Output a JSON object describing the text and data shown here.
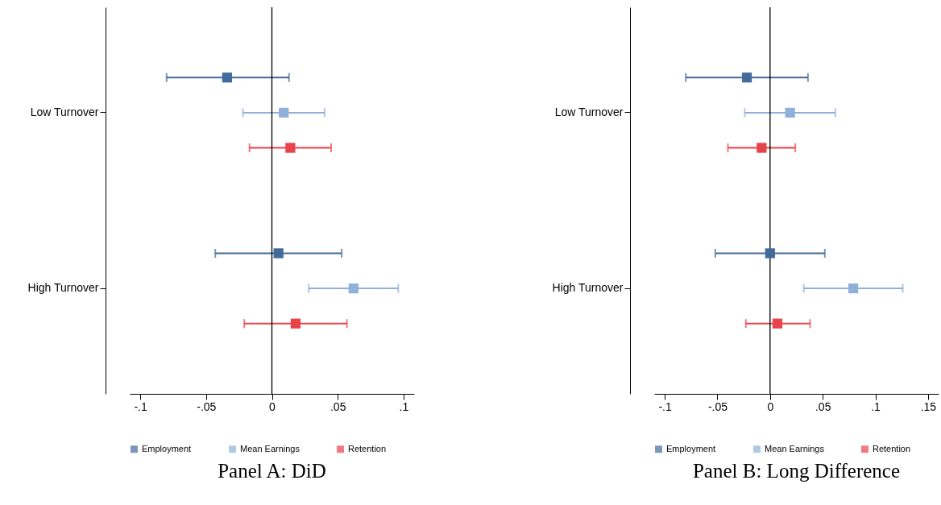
{
  "chart_data": [
    {
      "type": "scatter",
      "title": "Panel A: DiD",
      "orientation": "horizontal",
      "categories": [
        "Low Turnover",
        "High Turnover"
      ],
      "marker": "square",
      "legend": "bottom",
      "xlim": [
        -0.108,
        0.108
      ],
      "xticks": [
        {
          "value": -0.1,
          "label": "-.1"
        },
        {
          "value": -0.05,
          "label": "-.05"
        },
        0,
        {
          "value": 0.05,
          "label": ".05"
        },
        {
          "value": 0.1,
          "label": ".1"
        }
      ],
      "ref_lines": [
        {
          "axis": "x",
          "value": 0,
          "color": "#000000"
        }
      ],
      "series": [
        {
          "name": "Employment",
          "color": "#426a9a",
          "values": [
            -0.034,
            0.005
          ],
          "errors": [
            [
              -0.08,
              0.013
            ],
            [
              -0.043,
              0.053
            ]
          ]
        },
        {
          "name": "Mean Earnings",
          "color": "#8fb0d8",
          "values": [
            0.009,
            0.062
          ],
          "errors": [
            [
              -0.022,
              0.04
            ],
            [
              0.028,
              0.096
            ]
          ]
        },
        {
          "name": "Retention",
          "color": "#e8434a",
          "values": [
            0.014,
            0.018
          ],
          "errors": [
            [
              -0.017,
              0.045
            ],
            [
              -0.021,
              0.057
            ]
          ]
        }
      ]
    },
    {
      "type": "scatter",
      "title": "Panel B: Long Difference",
      "orientation": "horizontal",
      "categories": [
        "Low Turnover",
        "High Turnover"
      ],
      "marker": "square",
      "legend": "bottom",
      "xlim": [
        -0.11,
        0.16
      ],
      "xticks": [
        {
          "value": -0.1,
          "label": "-.1"
        },
        {
          "value": -0.05,
          "label": "-.05"
        },
        0,
        {
          "value": 0.05,
          "label": ".05"
        },
        {
          "value": 0.1,
          "label": ".1"
        },
        {
          "value": 0.15,
          "label": ".15"
        }
      ],
      "ref_lines": [
        {
          "axis": "x",
          "value": 0,
          "color": "#000000"
        }
      ],
      "series": [
        {
          "name": "Employment",
          "color": "#426a9a",
          "values": [
            -0.022,
            0.0
          ],
          "errors": [
            [
              -0.08,
              0.036
            ],
            [
              -0.052,
              0.052
            ]
          ]
        },
        {
          "name": "Mean Earnings",
          "color": "#8fb0d8",
          "values": [
            0.019,
            0.079
          ],
          "errors": [
            [
              -0.024,
              0.062
            ],
            [
              0.032,
              0.126
            ]
          ]
        },
        {
          "name": "Retention",
          "color": "#e8434a",
          "values": [
            -0.008,
            0.007
          ],
          "errors": [
            [
              -0.04,
              0.024
            ],
            [
              -0.023,
              0.038
            ]
          ]
        }
      ]
    }
  ]
}
